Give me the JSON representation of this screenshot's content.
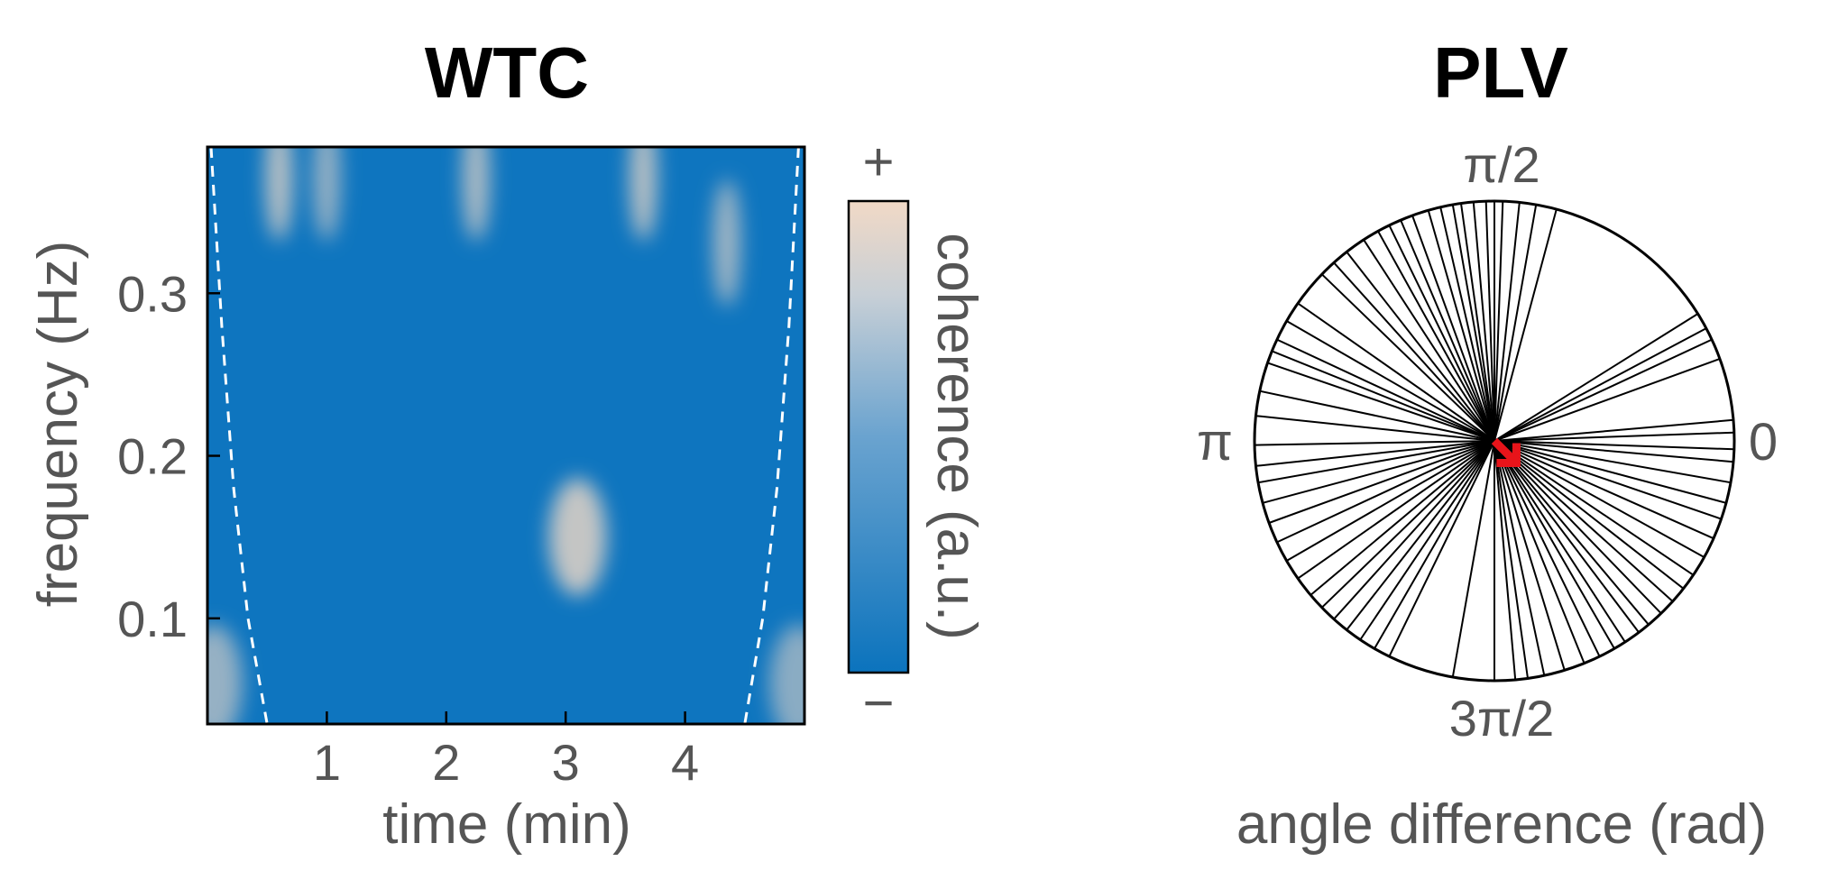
{
  "chart_data": [
    {
      "type": "heatmap",
      "title": "WTC",
      "xlabel": "time (min)",
      "ylabel": "frequency (Hz)",
      "xlim": [
        0,
        5
      ],
      "ylim": [
        0.035,
        0.39
      ],
      "xticks": [
        1,
        2,
        3,
        4
      ],
      "xtick_labels": [
        "1",
        "2",
        "3",
        "4"
      ],
      "yticks": [
        0.1,
        0.2,
        0.3
      ],
      "ytick_labels": [
        "0.1",
        "0.2",
        "0.3"
      ],
      "colorbar": {
        "label": "coherence (a.u.)",
        "max_label": "+",
        "min_label": "−",
        "low_color": "#0b73bd",
        "high_color": "#f1d9c6"
      },
      "cone_of_influence": {
        "style": "white dashed",
        "left": [
          [
            0.03,
            0.39
          ],
          [
            0.12,
            0.28
          ],
          [
            0.22,
            0.18
          ],
          [
            0.34,
            0.1
          ],
          [
            0.5,
            0.035
          ]
        ],
        "right": [
          [
            4.95,
            0.39
          ],
          [
            4.87,
            0.28
          ],
          [
            4.77,
            0.18
          ],
          [
            4.65,
            0.1
          ],
          [
            4.5,
            0.035
          ]
        ]
      },
      "hotspots": [
        {
          "t": 0.6,
          "f": 0.36,
          "value": 0.75
        },
        {
          "t": 1.0,
          "f": 0.36,
          "value": 0.6
        },
        {
          "t": 2.25,
          "f": 0.36,
          "value": 0.7
        },
        {
          "t": 3.1,
          "f": 0.15,
          "value": 0.8
        },
        {
          "t": 3.65,
          "f": 0.36,
          "value": 0.75
        },
        {
          "t": 4.35,
          "f": 0.32,
          "value": 0.65
        },
        {
          "t": 0.05,
          "f": 0.06,
          "value": 0.6
        },
        {
          "t": 4.95,
          "f": 0.06,
          "value": 0.55
        }
      ]
    },
    {
      "type": "polar",
      "title": "PLV",
      "xlabel": "angle difference (rad)",
      "angle_labels": {
        "right": "0",
        "top": "π/2",
        "left": "π",
        "bottom": "3π/2"
      },
      "spokes_angles_deg": [
        88,
        92,
        95,
        98,
        100,
        103,
        106,
        110,
        113,
        116,
        119,
        123,
        128,
        132,
        136,
        145,
        150,
        155,
        158,
        161,
        168,
        174,
        181,
        186,
        190,
        195,
        200,
        205,
        210,
        215,
        220,
        224,
        228,
        232,
        236,
        240,
        244,
        275,
        278,
        282,
        287,
        292,
        296,
        300,
        303,
        307,
        310,
        314,
        318,
        322,
        326,
        331,
        336,
        341,
        345,
        350,
        355,
        358,
        2,
        5,
        20,
        25,
        28,
        32,
        75,
        80,
        84,
        90,
        260,
        270
      ],
      "mean_vector": {
        "angle_deg": -45,
        "length": 0.13,
        "color": "#e8141a"
      }
    }
  ]
}
